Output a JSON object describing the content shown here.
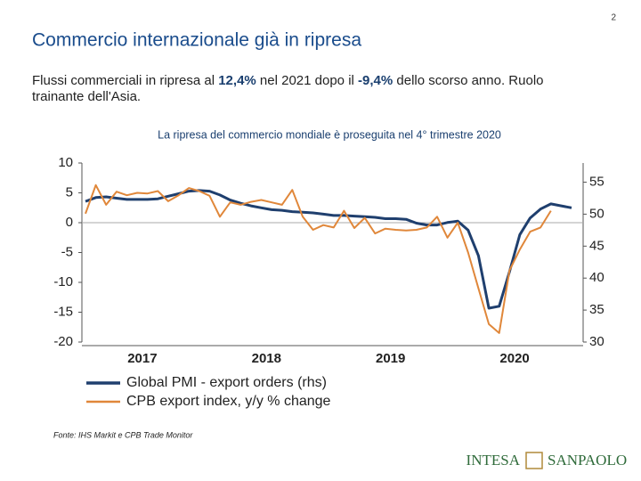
{
  "page_number": "2",
  "heading": "Commercio internazionale già in ripresa",
  "subtitle": [
    {
      "text": "Flussi commerciali in ripresa al "
    },
    {
      "text": "12,4%",
      "bold": true
    },
    {
      "text": " nel 2021 dopo il "
    },
    {
      "text": "-9,4%",
      "bold": true
    },
    {
      "text": " dello scorso anno. Ruolo trainante dell'Asia."
    }
  ],
  "chart_data": {
    "type": "line",
    "title": "La ripresa del commercio mondiale è proseguita nel 4° trimestre 2020",
    "categories": [
      null,
      null,
      null,
      null,
      null,
      "2017",
      null,
      null,
      null,
      null,
      null,
      null,
      null,
      null,
      null,
      null,
      null,
      "2018",
      null,
      null,
      null,
      null,
      null,
      null,
      null,
      null,
      null,
      null,
      null,
      "2019",
      null,
      null,
      null,
      null,
      null,
      null,
      null,
      null,
      null,
      null,
      null,
      "2020",
      null,
      null,
      null,
      null,
      null,
      null
    ],
    "series": [
      {
        "name": "Global PMI - export orders (rhs)",
        "color": "#1f3f6e",
        "axis": "y2",
        "values": [
          52.0,
          52.6,
          52.7,
          52.5,
          52.3,
          52.3,
          52.3,
          52.4,
          52.8,
          53.2,
          53.6,
          53.7,
          53.6,
          53.0,
          52.2,
          51.7,
          51.3,
          51.0,
          50.7,
          50.6,
          50.4,
          50.3,
          50.2,
          50.0,
          49.8,
          49.8,
          49.7,
          49.6,
          49.5,
          49.3,
          49.3,
          49.2,
          48.6,
          48.3,
          48.3,
          48.7,
          48.9,
          47.5,
          43.5,
          35.3,
          35.6,
          41.0,
          46.8,
          49.4,
          50.8,
          51.6,
          51.3,
          51.0
        ]
      },
      {
        "name": "CPB export index, y/y % change",
        "color": "#e0873a",
        "values": [
          1.5,
          6.3,
          3.0,
          5.2,
          4.6,
          5.0,
          4.9,
          5.3,
          3.6,
          4.6,
          5.8,
          5.3,
          4.5,
          1.0,
          3.4,
          3.0,
          3.5,
          3.8,
          3.4,
          3.0,
          5.5,
          1.0,
          -1.2,
          -0.4,
          -0.8,
          2.0,
          -0.9,
          0.8,
          -1.8,
          -1.0,
          -1.2,
          -1.3,
          -1.2,
          -0.8,
          1.0,
          -2.5,
          0.0,
          -5.0,
          -11.0,
          -17.0,
          -18.5,
          -8.0,
          -4.5,
          -1.5,
          -0.8,
          2.0,
          null,
          null
        ]
      }
    ],
    "ylim": [
      -20,
      10
    ],
    "yticks": [
      -20,
      -15,
      -10,
      -5,
      0,
      5,
      10
    ],
    "y2lim": [
      30,
      58
    ],
    "y2ticks": [
      30,
      35,
      40,
      45,
      50,
      55
    ],
    "zero_line": true
  },
  "source": "Fonte: IHS Markit e CPB Trade Monitor",
  "logo": [
    "INTESA",
    "SANPAOLO"
  ]
}
